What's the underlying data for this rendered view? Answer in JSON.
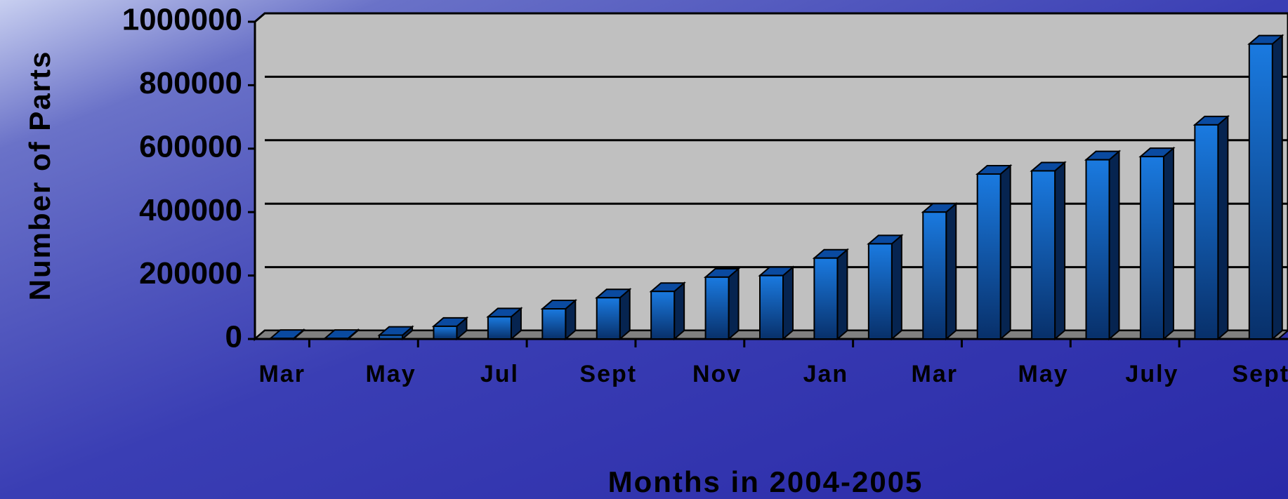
{
  "chart_data": {
    "type": "bar3d",
    "xlabel": "Months in 2004-2005",
    "ylabel": "Number of Parts",
    "categories": [
      "Mar",
      null,
      "May",
      null,
      "Jul",
      null,
      "Sept",
      null,
      "Nov",
      null,
      "Jan",
      null,
      "Mar",
      null,
      "May",
      null,
      "July",
      null,
      "Sept"
    ],
    "values": [
      2000,
      2000,
      12000,
      40000,
      70000,
      95000,
      130000,
      150000,
      195000,
      200000,
      255000,
      300000,
      400000,
      520000,
      530000,
      565000,
      575000,
      675000,
      930000
    ],
    "color": "#1060c8",
    "ylim": [
      0,
      1000000
    ],
    "yticks": [
      0,
      200000,
      400000,
      600000,
      800000,
      1000000
    ],
    "grid": true
  }
}
